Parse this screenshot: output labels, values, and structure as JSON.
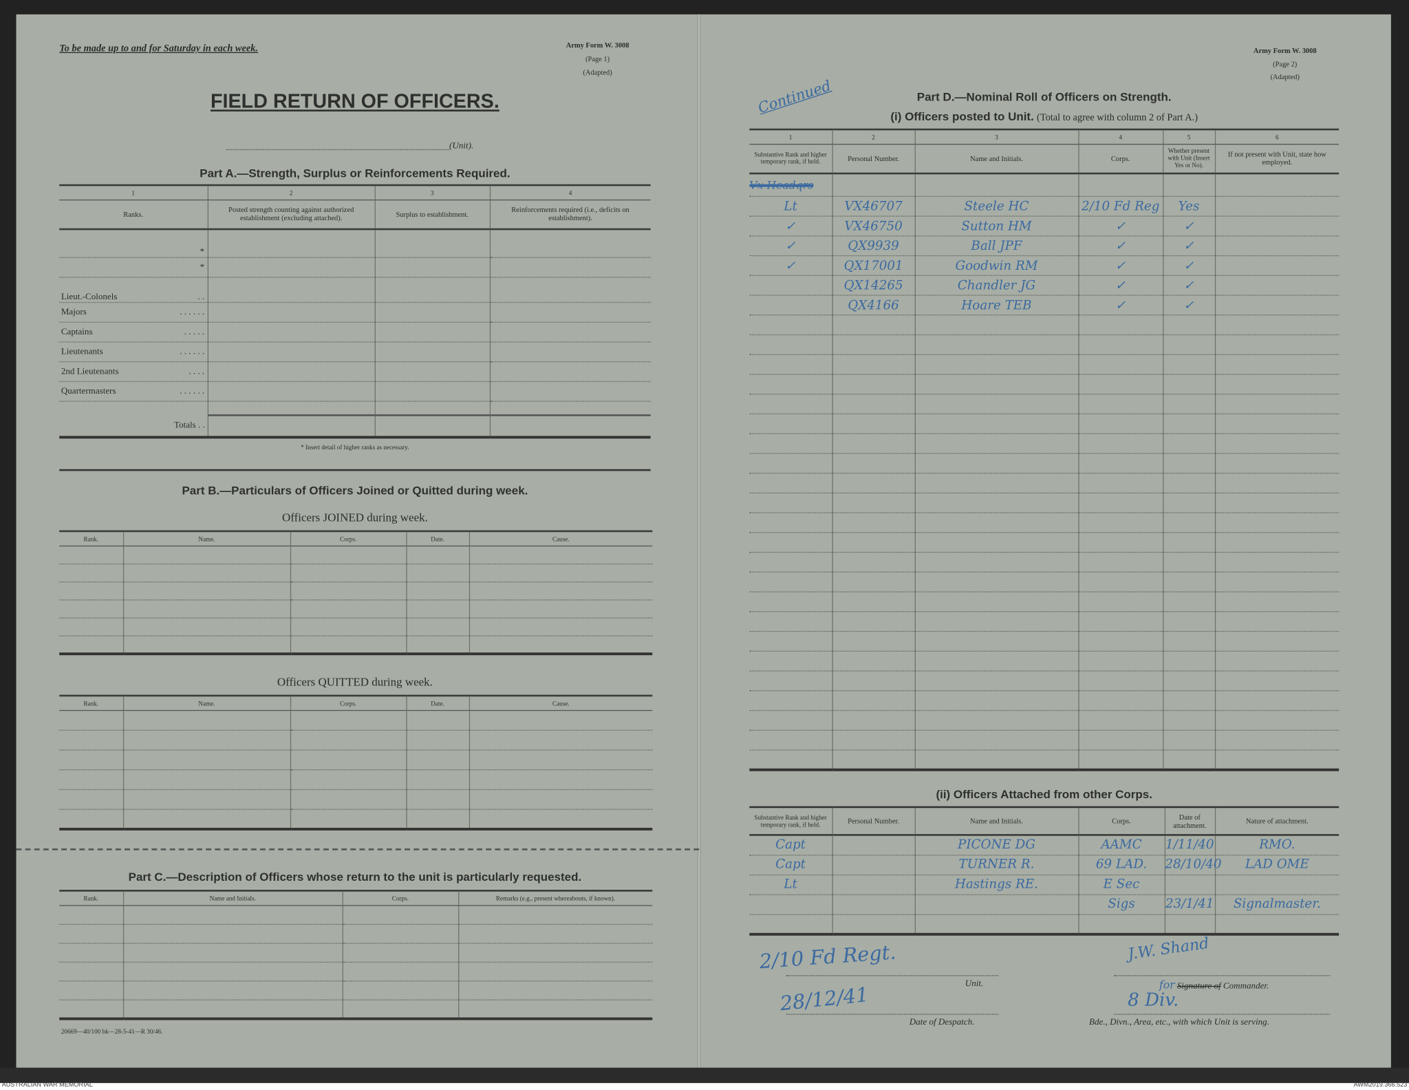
{
  "page1": {
    "instruction": "To be made up to and for Saturday in each week.",
    "form_no": "Army Form W. 3008",
    "page": "(Page 1)",
    "adapted": "(Adapted)",
    "title": "FIELD RETURN OF OFFICERS.",
    "unit_label": "(Unit).",
    "part_a": {
      "heading": "Part A.—Strength, Surplus or Reinforcements Required.",
      "col_numbers": [
        "1",
        "2",
        "3",
        "4"
      ],
      "headers": [
        "Ranks.",
        "Posted strength counting against authorized establishment (excluding attached).",
        "Surplus to establishment.",
        "Reinforcements required (i.e., deficits on establishment)."
      ],
      "ranks": [
        "*",
        "*",
        "Lieut.-Colonels",
        "Majors",
        "Captains",
        "Lieutenants",
        "2nd Lieutenants",
        "Quartermasters"
      ],
      "dots": [
        ". .",
        ". .   . .   . .",
        ".   . .   . .",
        ". .   . .   . .",
        ". .   . .",
        ". .   . .   . ."
      ],
      "totals": "Totals",
      "totals_dots": ". .",
      "note": "* Insert detail of higher ranks as necessary."
    },
    "part_b": {
      "heading": "Part B.—Particulars of Officers Joined or Quitted during week.",
      "joined_heading": "Officers JOINED during week.",
      "quitted_heading": "Officers QUITTED during week.",
      "headers": [
        "Rank.",
        "Name.",
        "Corps.",
        "Date.",
        "Cause."
      ]
    },
    "part_c": {
      "heading": "Part C.—Description of Officers whose return to the unit is particularly requested.",
      "headers": [
        "Rank.",
        "Name and Initials.",
        "Corps.",
        "Remarks (e.g., present whereabouts, if known)."
      ]
    },
    "print_code": "20669—40/100 bk—28-5-41—R 30/46."
  },
  "page2": {
    "form_no": "Army Form W. 3008",
    "page": "(Page 2)",
    "adapted": "(Adapted)",
    "continued": "Continued",
    "part_d": {
      "heading": "Part D.—Nominal Roll of Officers on Strength.",
      "sub_i": "(i) Officers posted to Unit.",
      "sub_i_note": "(Total to agree with column 2 of Part A.)",
      "col_numbers": [
        "1",
        "2",
        "3",
        "4",
        "5",
        "6"
      ],
      "headers": [
        "Substantive Rank and higher temporary rank, if held.",
        "Personal Number.",
        "Name and Initials.",
        "Corps.",
        "Whether present with Unit (Insert Yes or No).",
        "If not present with Unit, state how employed."
      ],
      "struck_entry": "Vx Headqrs",
      "rows": [
        {
          "rank": "Lt",
          "number": "VX46707",
          "name": "Steele HC",
          "corps": "2/10 Fd Reg",
          "present": "Yes"
        },
        {
          "rank": "✓",
          "number": "VX46750",
          "name": "Sutton HM",
          "corps": "✓",
          "present": "✓"
        },
        {
          "rank": "✓",
          "number": "QX9939",
          "name": "Ball JPF",
          "corps": "✓",
          "present": "✓"
        },
        {
          "rank": "✓",
          "number": "QX17001",
          "name": "Goodwin RM",
          "corps": "✓",
          "present": "✓"
        },
        {
          "rank": "",
          "number": "QX14265",
          "name": "Chandler JG",
          "corps": "✓",
          "present": "✓"
        },
        {
          "rank": "",
          "number": "QX4166",
          "name": "Hoare TEB",
          "corps": "✓",
          "present": "✓"
        }
      ],
      "sub_ii": "(ii) Officers Attached from other Corps.",
      "headers_ii": [
        "Substantive Rank and higher temporary rank, if held.",
        "Personal Number.",
        "Name and Initials.",
        "Corps.",
        "Date of attachment.",
        "Nature of attachment."
      ],
      "rows_ii": [
        {
          "rank": "Capt",
          "number": "",
          "name": "PICONE DG",
          "corps": "AAMC",
          "date": "1/11/40",
          "nature": "RMO."
        },
        {
          "rank": "Capt",
          "number": "",
          "name": "TURNER R.",
          "corps": "69 LAD.",
          "date": "28/10/40",
          "nature": "LAD OME"
        },
        {
          "rank": "Lt",
          "number": "",
          "name": "Hastings RE.",
          "corps": "E Sec",
          "date": "",
          "nature": ""
        },
        {
          "rank": "",
          "number": "",
          "name": "",
          "corps": "Sigs",
          "date": "23/1/41",
          "nature": "Signalmaster."
        }
      ]
    },
    "signoff": {
      "unit_value": "2/10 Fd Regt.",
      "unit_label": "Unit.",
      "date_value": "28/12/41",
      "date_label": "Date of Despatch.",
      "signature": "J.W. Shand",
      "for": "for",
      "commander_struck": "Signature of",
      "commander_label": "Commander.",
      "formation_value": "8 Div.",
      "formation_label": "Bde., Divn., Area, etc., with which Unit is serving."
    }
  },
  "credits": {
    "left": "AUSTRALIAN WAR MEMORIAL",
    "right": "AWM2019.366.523"
  }
}
